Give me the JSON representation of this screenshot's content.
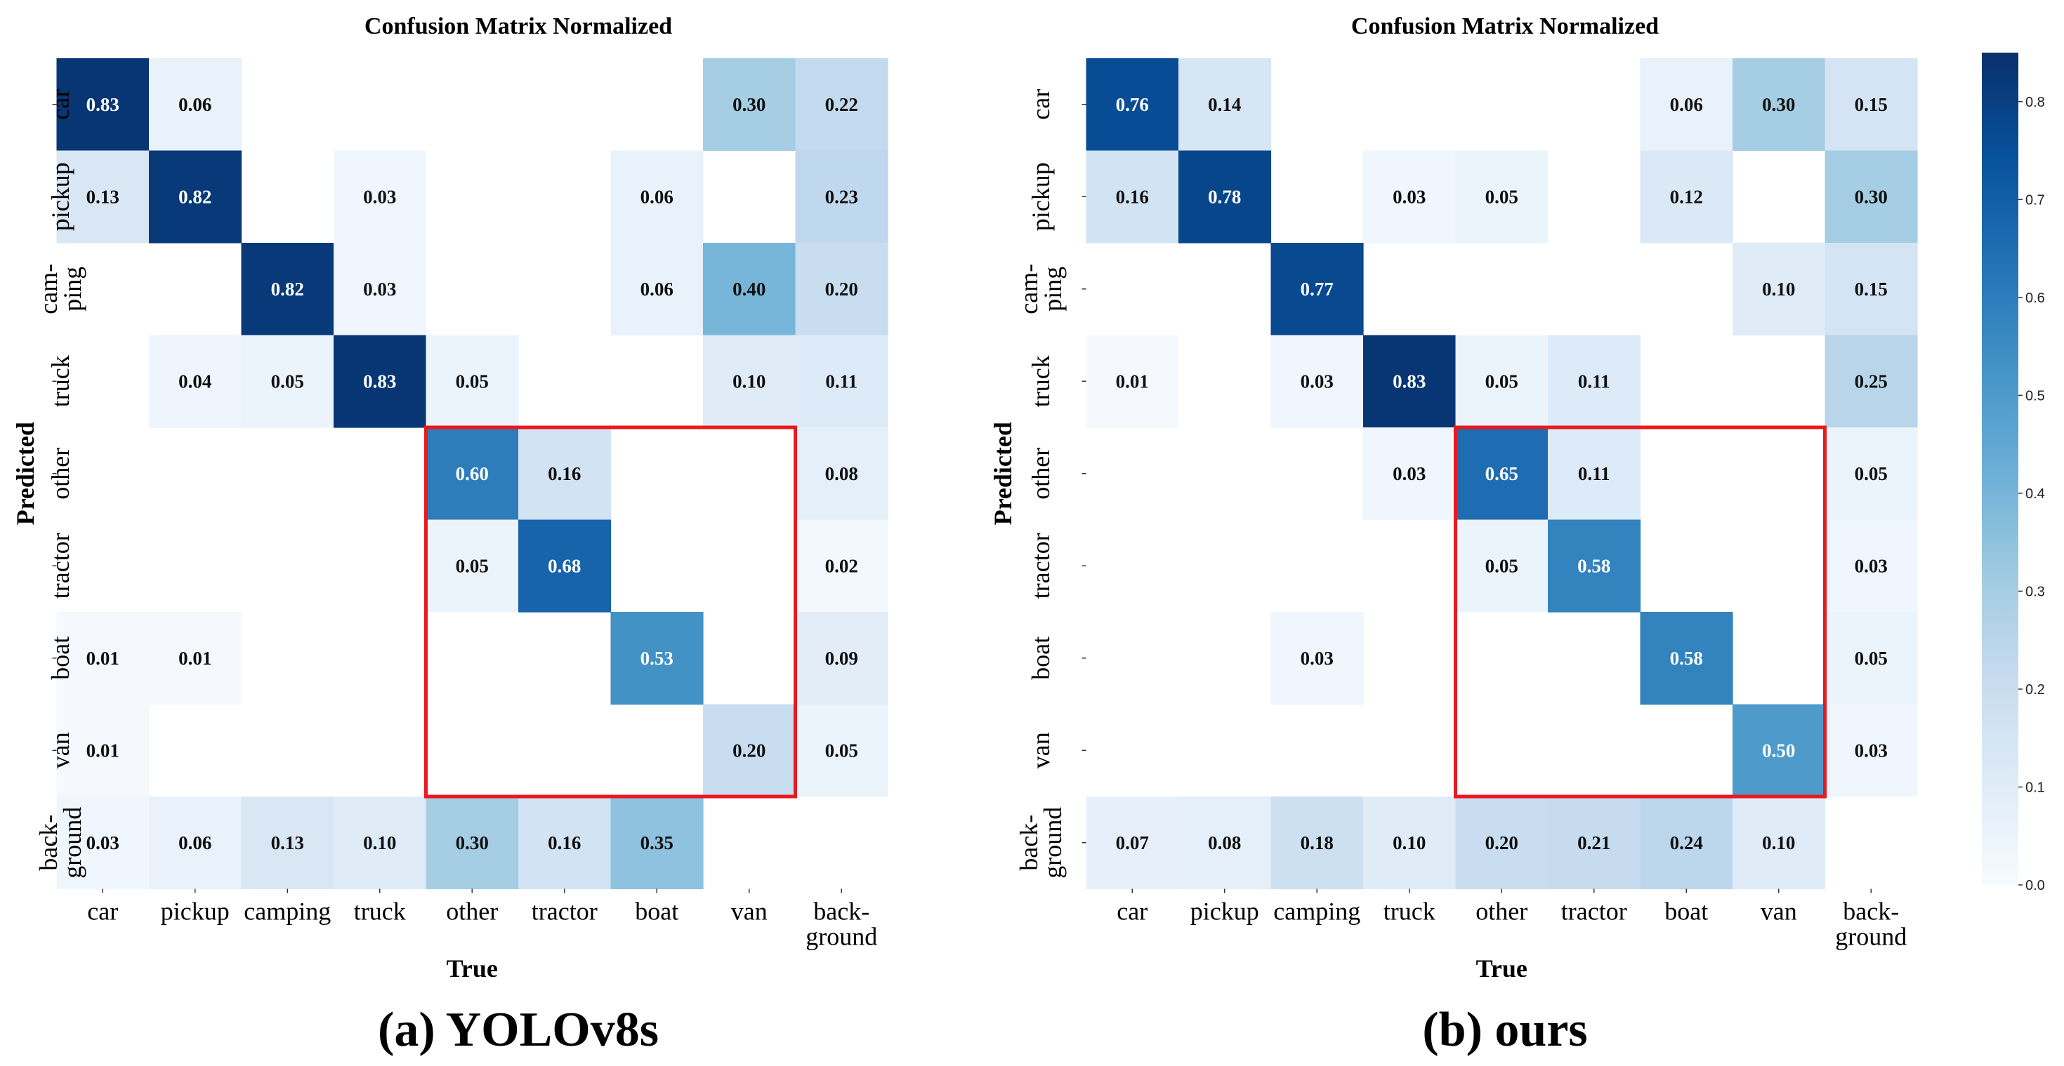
{
  "chart_data": [
    {
      "type": "heatmap",
      "title": "Confusion Matrix Normalized",
      "caption": "(a) YOLOv8s",
      "xlabel": "True",
      "ylabel": "Predicted",
      "x_ticks": [
        [
          "car"
        ],
        [
          "pickup"
        ],
        [
          "camping"
        ],
        [
          "truck"
        ],
        [
          "other"
        ],
        [
          "tractor"
        ],
        [
          "boat"
        ],
        [
          "van"
        ],
        [
          "back-",
          "ground"
        ]
      ],
      "y_ticks": [
        [
          "car"
        ],
        [
          "pickup"
        ],
        [
          "cam-",
          "ping"
        ],
        [
          "truck"
        ],
        [
          "other"
        ],
        [
          "tractor"
        ],
        [
          "boat"
        ],
        [
          "van"
        ],
        [
          "back-",
          "ground"
        ]
      ],
      "values": [
        [
          0.83,
          0.06,
          null,
          null,
          null,
          null,
          null,
          0.3,
          0.22
        ],
        [
          0.13,
          0.82,
          null,
          0.03,
          null,
          null,
          0.06,
          null,
          0.23
        ],
        [
          null,
          null,
          0.82,
          0.03,
          null,
          null,
          0.06,
          0.4,
          0.2
        ],
        [
          null,
          0.04,
          0.05,
          0.83,
          0.05,
          null,
          null,
          0.1,
          0.11
        ],
        [
          null,
          null,
          null,
          null,
          0.6,
          0.16,
          null,
          null,
          0.08
        ],
        [
          null,
          null,
          null,
          null,
          0.05,
          0.68,
          null,
          null,
          0.02
        ],
        [
          0.01,
          0.01,
          null,
          null,
          null,
          null,
          0.53,
          null,
          0.09
        ],
        [
          0.01,
          null,
          null,
          null,
          null,
          null,
          null,
          0.2,
          0.05
        ],
        [
          0.03,
          0.06,
          0.13,
          0.1,
          0.3,
          0.16,
          0.35,
          null,
          null
        ]
      ],
      "highlight": {
        "rows": [
          4,
          7
        ],
        "cols": [
          4,
          7
        ],
        "color": "#e8191f"
      }
    },
    {
      "type": "heatmap",
      "title": "Confusion Matrix Normalized",
      "caption": "(b) ours",
      "xlabel": "True",
      "ylabel": "Predicted",
      "x_ticks": [
        [
          "car"
        ],
        [
          "pickup"
        ],
        [
          "camping"
        ],
        [
          "truck"
        ],
        [
          "other"
        ],
        [
          "tractor"
        ],
        [
          "boat"
        ],
        [
          "van"
        ],
        [
          "back-",
          "ground"
        ]
      ],
      "y_ticks": [
        [
          "car"
        ],
        [
          "pickup"
        ],
        [
          "cam-",
          "ping"
        ],
        [
          "truck"
        ],
        [
          "other"
        ],
        [
          "tractor"
        ],
        [
          "boat"
        ],
        [
          "van"
        ],
        [
          "back-",
          "ground"
        ]
      ],
      "values": [
        [
          0.76,
          0.14,
          null,
          null,
          null,
          null,
          0.06,
          0.3,
          0.15
        ],
        [
          0.16,
          0.78,
          null,
          0.03,
          0.05,
          null,
          0.12,
          null,
          0.3
        ],
        [
          null,
          null,
          0.77,
          null,
          null,
          null,
          null,
          0.1,
          0.15
        ],
        [
          0.01,
          null,
          0.03,
          0.83,
          0.05,
          0.11,
          null,
          null,
          0.25
        ],
        [
          null,
          null,
          null,
          0.03,
          0.65,
          0.11,
          null,
          null,
          0.05
        ],
        [
          null,
          null,
          null,
          null,
          0.05,
          0.58,
          null,
          null,
          0.03
        ],
        [
          null,
          null,
          0.03,
          null,
          null,
          null,
          0.58,
          null,
          0.05
        ],
        [
          null,
          null,
          null,
          null,
          null,
          null,
          null,
          0.5,
          0.03
        ],
        [
          0.07,
          0.08,
          0.18,
          0.1,
          0.2,
          0.21,
          0.24,
          0.1,
          null
        ]
      ],
      "highlight": {
        "rows": [
          4,
          7
        ],
        "cols": [
          4,
          7
        ],
        "color": "#e8191f"
      }
    }
  ],
  "colorbar": {
    "colormap": "Blues",
    "range": [
      0.0,
      0.85
    ],
    "ticks": [
      "0.0",
      "0.1",
      "0.2",
      "0.3",
      "0.4",
      "0.5",
      "0.6",
      "0.7",
      "0.8"
    ]
  },
  "colors": {
    "text_dark": "#111111",
    "text_light": "#ffffff",
    "highlight": "#e8191f"
  }
}
